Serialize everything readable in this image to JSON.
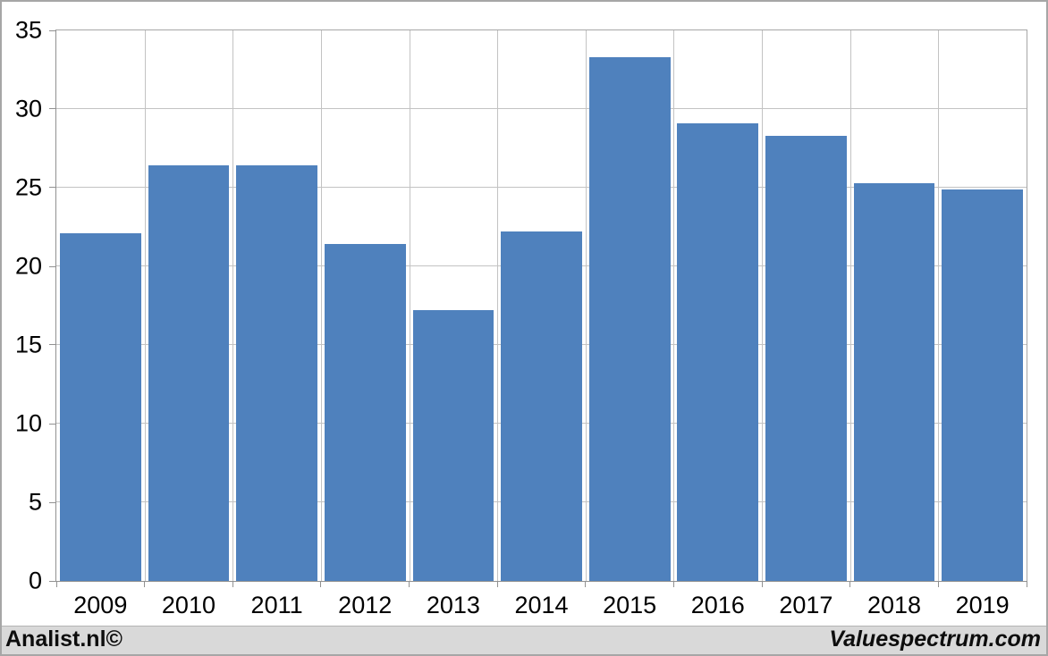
{
  "footer": {
    "left_brand": "Analist.nl©",
    "right_brand": "Valuespectrum.com"
  },
  "colors": {
    "bar": "#4f81bd",
    "gridline": "#c3c3c3",
    "axis": "#919191",
    "plot_frame": "#a6a6a6",
    "footer_background": "#d9d9d9",
    "chart_background": "#ffffff"
  },
  "chart_data": {
    "type": "bar",
    "title": "",
    "xlabel": "",
    "ylabel": "",
    "categories": [
      "2009",
      "2010",
      "2011",
      "2012",
      "2013",
      "2014",
      "2015",
      "2016",
      "2017",
      "2018",
      "2019"
    ],
    "values": [
      22.1,
      26.4,
      26.4,
      21.4,
      17.2,
      22.2,
      33.3,
      29.1,
      28.3,
      25.3,
      24.9
    ],
    "ylim": [
      0,
      35
    ],
    "yticks": [
      0,
      5,
      10,
      15,
      20,
      25,
      30,
      35
    ],
    "grid": true,
    "legend": "none",
    "series_name": ""
  }
}
